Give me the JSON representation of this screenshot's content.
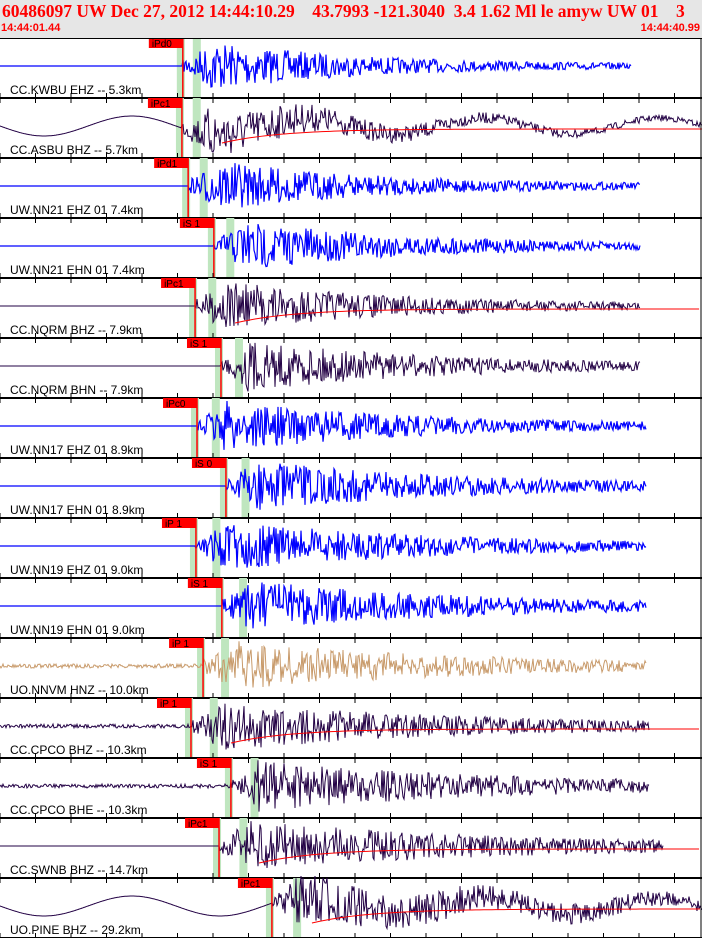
{
  "header": {
    "title": "60486097 UW Dec 27, 2012 14:44:10.29    43.7993 -121.3040  3.4 1.62 Ml le amyw UW 01    3",
    "start_time": "14:44:01.44",
    "end_time": "14:44:40.99"
  },
  "window_seconds": 39.55,
  "traces": [
    {
      "label": "CC.KWBU EHZ -- 5.3km",
      "pick": "iPd0",
      "pick_s": 10.3,
      "color": "#0000ff",
      "pre": "flat",
      "end_s": 35.6
    },
    {
      "label": "CC.ASBU BHZ -- 5.7km",
      "pick": "iPc1",
      "pick_s": 10.25,
      "color": "#220044",
      "pre": "wave",
      "end_s": 39.55,
      "coda": true
    },
    {
      "label": "UW.NN21 EHZ 01 7.4km",
      "pick": "iPd1",
      "pick_s": 10.6,
      "color": "#0000ff",
      "pre": "flat",
      "end_s": 36.1
    },
    {
      "label": "UW.NN21 EHN 01 7.4km",
      "pick": "iS 1",
      "pick_s": 12.05,
      "color": "#0000ff",
      "pre": "flat",
      "end_s": 36.1
    },
    {
      "label": "CC.NQRM BHZ -- 7.9km",
      "pick": "iPc1",
      "pick_s": 10.99,
      "color": "#220044",
      "pre": "flat",
      "end_s": 36.1,
      "coda": true
    },
    {
      "label": "CC.NQRM BHN -- 7.9km",
      "pick": "iS 1",
      "pick_s": 12.45,
      "color": "#220044",
      "pre": "flat",
      "end_s": 36.1
    },
    {
      "label": "UW.NN17 EHZ 01 8.9km",
      "pick": "iPc0",
      "pick_s": 11.1,
      "color": "#0000ff",
      "pre": "flat",
      "end_s": 36.4
    },
    {
      "label": "UW.NN17 EHN 01 8.9km",
      "pick": "iS 0",
      "pick_s": 12.73,
      "color": "#0000ff",
      "pre": "flat",
      "end_s": 36.4
    },
    {
      "label": "UW.NN19 EHZ 01 9.0km",
      "pick": "iP 1",
      "pick_s": 11.04,
      "color": "#0000ff",
      "pre": "flat",
      "end_s": 36.4
    },
    {
      "label": "UW.NN19 EHN 01 9.0km",
      "pick": "iS 1",
      "pick_s": 12.5,
      "color": "#0000ff",
      "pre": "flat",
      "end_s": 36.4
    },
    {
      "label": "UO.NNVM HNZ -- 10.0km",
      "pick": "iP 1",
      "pick_s": 11.44,
      "color": "#c89a6a",
      "pre": "noise",
      "end_s": 36.4
    },
    {
      "label": "CC.CPCO BHZ -- 10.3km",
      "pick": "iP 1",
      "pick_s": 10.76,
      "color": "#220044",
      "pre": "noise",
      "end_s": 36.6,
      "coda": true
    },
    {
      "label": "CC.CPCO BHE -- 10.3km",
      "pick": "iS 1",
      "pick_s": 13.01,
      "color": "#220044",
      "pre": "noise",
      "end_s": 36.6
    },
    {
      "label": "CC.SWNB BHZ -- 14.7km",
      "pick": "iPc1",
      "pick_s": 12.34,
      "color": "#220044",
      "pre": "flat",
      "end_s": 37.4,
      "coda": true
    },
    {
      "label": "UO.PINE BHZ -- 29.2km",
      "pick": "iPc1",
      "pick_s": 15.32,
      "color": "#220044",
      "pre": "wave",
      "end_s": 39.55,
      "coda": true
    }
  ]
}
